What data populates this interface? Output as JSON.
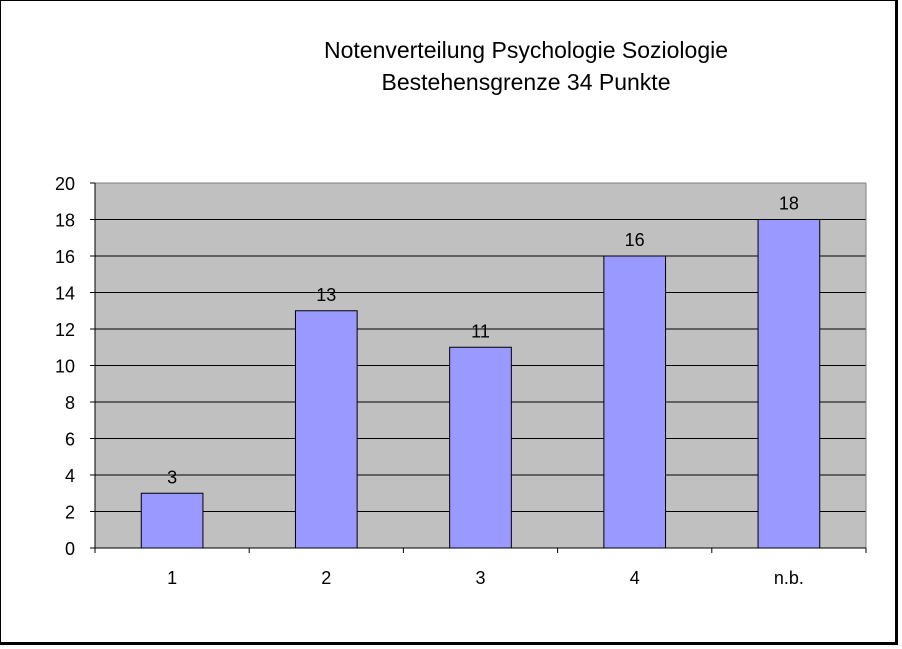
{
  "chart_data": {
    "type": "bar",
    "title": "Notenverteilung Psychologie Soziologie",
    "subtitle": "Bestehensgrenze 34 Punkte",
    "categories": [
      "1",
      "2",
      "3",
      "4",
      "n.b."
    ],
    "values": [
      3,
      13,
      11,
      16,
      18
    ],
    "ylim": [
      0,
      20
    ],
    "yticks": [
      0,
      2,
      4,
      6,
      8,
      10,
      12,
      14,
      16,
      18,
      20
    ],
    "xlabel": "",
    "ylabel": "",
    "grid": true,
    "legend": "none",
    "colors": {
      "bar": "#9999ff",
      "plot_bg": "#c0c0c0",
      "grid": "#000000"
    }
  }
}
